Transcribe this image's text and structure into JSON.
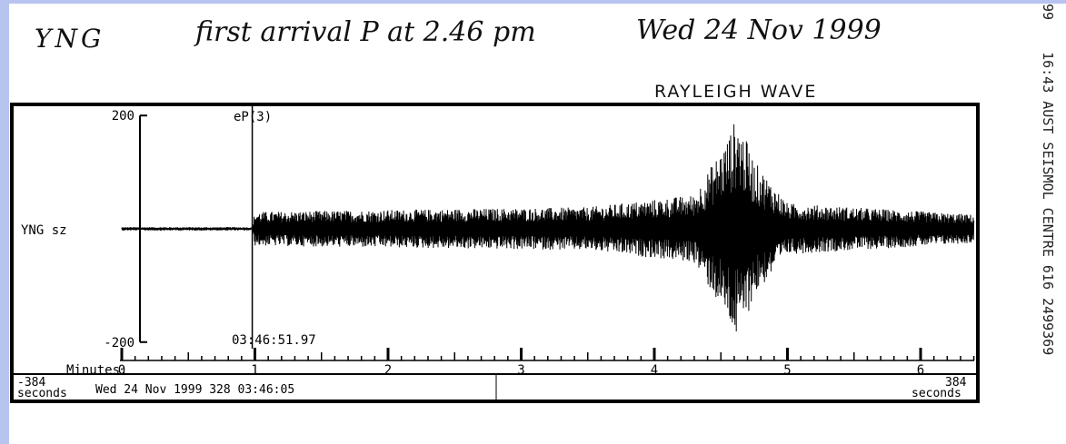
{
  "handwritten": {
    "station": "YNG",
    "note": "first arrival P at 2.46 pm",
    "date": "Wed 24 Nov 1999",
    "wave_label": "RAYLEIGH WAVE"
  },
  "side_header": [
    "99",
    "16:43 AUST SEISMOL CENTRE 616 2499369"
  ],
  "chart_data": {
    "type": "line",
    "title": "",
    "channel_label": "YNG sz",
    "pick_label": "eP(3)",
    "pick_time": "03:46:51.97",
    "pick_minute": 0.98,
    "xlabel": "Minutes:",
    "xlim": [
      0,
      6.4
    ],
    "x_ticks": [
      "0",
      "1",
      "2",
      "3",
      "4",
      "5",
      "6"
    ],
    "y_ticks": [
      "200",
      "-200"
    ],
    "ylim": [
      -210,
      210
    ],
    "footer": {
      "left_value": "-384",
      "left_unit": "seconds",
      "date_line": "Wed 24 Nov 1999 328 03:46:05",
      "right_value": "384",
      "right_unit": "seconds"
    },
    "envelope": {
      "description_points_minutes": [
        0,
        0.98,
        1.0,
        2.5,
        3.5,
        4.3,
        4.55,
        4.62,
        4.75,
        5.0,
        6.4
      ],
      "amplitude": [
        3,
        3,
        30,
        35,
        38,
        60,
        160,
        200,
        120,
        45,
        25
      ]
    }
  },
  "colors": {
    "ink": "#000000",
    "frame": "#b8c4f0"
  }
}
